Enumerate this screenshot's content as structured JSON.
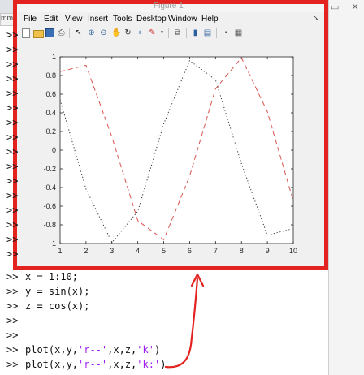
{
  "figure_title": "Figure 1",
  "background_tab_label": "mme",
  "menu": [
    "File",
    "Edit",
    "View",
    "Insert",
    "Tools",
    "Desktop",
    "Window",
    "Help"
  ],
  "prompt_symbol": ">>",
  "commands": [
    {
      "text": "x = 1:10;"
    },
    {
      "text": "y = sin(x);"
    },
    {
      "text": "z = cos(x);"
    },
    {
      "text": ""
    },
    {
      "text": ""
    },
    {
      "text": "plot(x,y,",
      "str1": "'r--'",
      "mid": ",x,z,",
      "str2": "'k'",
      "end": ")"
    },
    {
      "text": "plot(x,y,",
      "str1": "'r--'",
      "mid": ",x,z,",
      "str2": "'k:'",
      "end": ")"
    }
  ],
  "toolbar_icons": [
    "new-file-icon",
    "open-folder-icon",
    "save-icon",
    "print-icon",
    "pointer-icon",
    "zoom-in-icon",
    "zoom-out-icon",
    "pan-icon",
    "rotate-icon",
    "data-cursor-icon",
    "brush-icon",
    "link-icon",
    "colorbar-icon",
    "legend-icon",
    "hide-tools-icon",
    "show-tools-icon"
  ],
  "annotation_color": "#e3231f",
  "chart_data": {
    "type": "line",
    "x": [
      1,
      2,
      3,
      4,
      5,
      6,
      7,
      8,
      9,
      10
    ],
    "xlim": [
      1,
      10
    ],
    "ylim": [
      -1,
      1
    ],
    "xticks": [
      "1",
      "2",
      "3",
      "4",
      "5",
      "6",
      "7",
      "8",
      "9",
      "10"
    ],
    "yticks": [
      "-1",
      "-0.8",
      "-0.6",
      "-0.4",
      "-0.2",
      "0",
      "0.2",
      "0.4",
      "0.6",
      "0.8",
      "1"
    ],
    "series": [
      {
        "values": [
          0.8415,
          0.9093,
          0.1411,
          -0.7568,
          -0.9589,
          -0.2794,
          0.657,
          0.9894,
          0.4121,
          -0.544
        ],
        "color": "#d9534f",
        "style": "dashed"
      },
      {
        "values": [
          0.5403,
          -0.4161,
          -0.99,
          -0.6536,
          0.2837,
          0.9602,
          0.7539,
          -0.1455,
          -0.9111,
          -0.8391
        ],
        "color": "#333333",
        "style": "dotted"
      }
    ]
  }
}
